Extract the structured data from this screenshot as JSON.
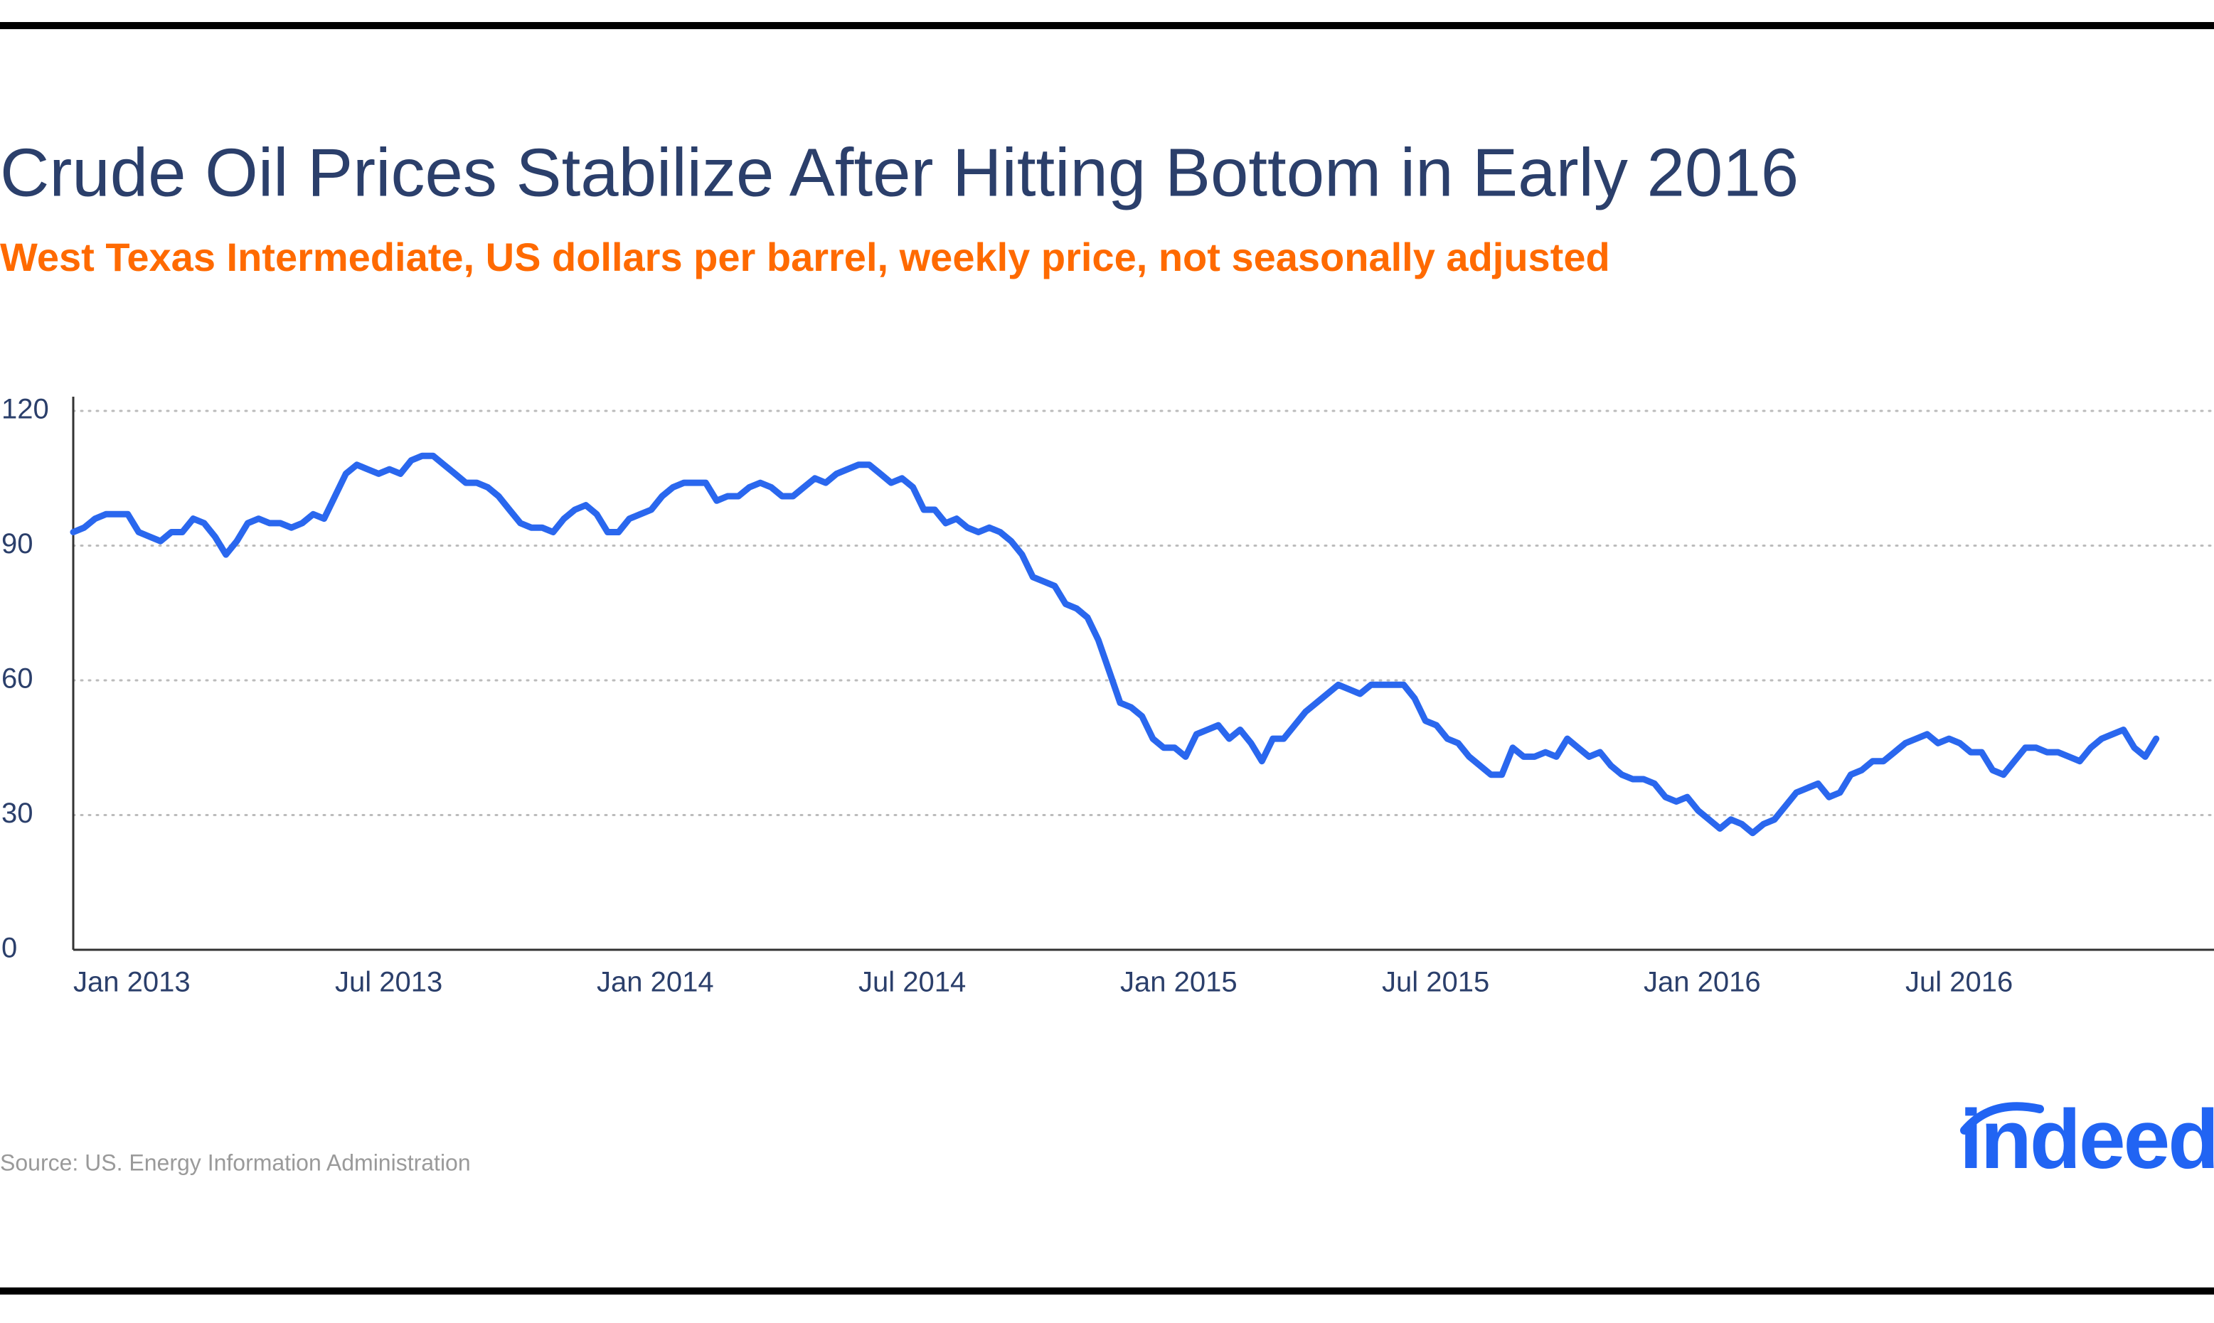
{
  "chart_data": {
    "type": "line",
    "title": "Crude Oil Prices Stabilize After Hitting Bottom in Early 2016",
    "subtitle": "West Texas Intermediate, US dollars per barrel, weekly price, not seasonally adjusted",
    "source": "Source: US. Energy Information Administration",
    "logo": "indeed",
    "color": "#2a67ee",
    "grid": true,
    "ylim": [
      0,
      120
    ],
    "yticks": [
      0,
      30,
      60,
      90,
      120
    ],
    "xlim": [
      "2013-01",
      "2016-12"
    ],
    "xticks": [
      {
        "value": "2013-01",
        "label": "Jan 2013"
      },
      {
        "value": "2013-07",
        "label": "Jul 2013"
      },
      {
        "value": "2014-01",
        "label": "Jan 2014"
      },
      {
        "value": "2014-07",
        "label": "Jul 2014"
      },
      {
        "value": "2015-01",
        "label": "Jan 2015"
      },
      {
        "value": "2015-07",
        "label": "Jul 2015"
      },
      {
        "value": "2016-01",
        "label": "Jan 2016"
      },
      {
        "value": "2016-07",
        "label": "Jul 2016"
      }
    ],
    "x": [
      "2013-01",
      "2013-01",
      "2013-01",
      "2013-01",
      "2013-02",
      "2013-02",
      "2013-02",
      "2013-02",
      "2013-03",
      "2013-03",
      "2013-03",
      "2013-03",
      "2013-04",
      "2013-04",
      "2013-04",
      "2013-04",
      "2013-05",
      "2013-05",
      "2013-05",
      "2013-05",
      "2013-06",
      "2013-06",
      "2013-06",
      "2013-06",
      "2013-07",
      "2013-07",
      "2013-07",
      "2013-07",
      "2013-08",
      "2013-08",
      "2013-08",
      "2013-08",
      "2013-09",
      "2013-09",
      "2013-09",
      "2013-09",
      "2013-10",
      "2013-10",
      "2013-10",
      "2013-10",
      "2013-11",
      "2013-11",
      "2013-11",
      "2013-11",
      "2013-12",
      "2013-12",
      "2013-12",
      "2013-12",
      "2014-01",
      "2014-01",
      "2014-01",
      "2014-01",
      "2014-02",
      "2014-02",
      "2014-02",
      "2014-02",
      "2014-03",
      "2014-03",
      "2014-03",
      "2014-03",
      "2014-04",
      "2014-04",
      "2014-04",
      "2014-04",
      "2014-05",
      "2014-05",
      "2014-05",
      "2014-05",
      "2014-06",
      "2014-06",
      "2014-06",
      "2014-06",
      "2014-07",
      "2014-07",
      "2014-07",
      "2014-07",
      "2014-08",
      "2014-08",
      "2014-08",
      "2014-08",
      "2014-09",
      "2014-09",
      "2014-09",
      "2014-09",
      "2014-10",
      "2014-10",
      "2014-10",
      "2014-10",
      "2014-11",
      "2014-11",
      "2014-11",
      "2014-11",
      "2014-12",
      "2014-12",
      "2014-12",
      "2014-12",
      "2015-01",
      "2015-01",
      "2015-01",
      "2015-01",
      "2015-02",
      "2015-02",
      "2015-02",
      "2015-02",
      "2015-03",
      "2015-03",
      "2015-03",
      "2015-03",
      "2015-04",
      "2015-04",
      "2015-04",
      "2015-04",
      "2015-05",
      "2015-05",
      "2015-05",
      "2015-05",
      "2015-06",
      "2015-06",
      "2015-06",
      "2015-06",
      "2015-07",
      "2015-07",
      "2015-07",
      "2015-07",
      "2015-08",
      "2015-08",
      "2015-08",
      "2015-08",
      "2015-09",
      "2015-09",
      "2015-09",
      "2015-09",
      "2015-10",
      "2015-10",
      "2015-10",
      "2015-10",
      "2015-11",
      "2015-11",
      "2015-11",
      "2015-11",
      "2015-12",
      "2015-12",
      "2015-12",
      "2015-12",
      "2016-01",
      "2016-01",
      "2016-01",
      "2016-01",
      "2016-02",
      "2016-02",
      "2016-02",
      "2016-02",
      "2016-03",
      "2016-03",
      "2016-03",
      "2016-03",
      "2016-04",
      "2016-04",
      "2016-04",
      "2016-04",
      "2016-05",
      "2016-05",
      "2016-05",
      "2016-05",
      "2016-06",
      "2016-06",
      "2016-06",
      "2016-06",
      "2016-07",
      "2016-07",
      "2016-07",
      "2016-07",
      "2016-08",
      "2016-08",
      "2016-08",
      "2016-08",
      "2016-09",
      "2016-09",
      "2016-09",
      "2016-09",
      "2016-10",
      "2016-10",
      "2016-10",
      "2016-10",
      "2016-11",
      "2016-11",
      "2016-11",
      "2016-11",
      "2016-12",
      "2016-12",
      "2016-12",
      "2016-12"
    ],
    "values": [
      93,
      94,
      96,
      97,
      97,
      97,
      93,
      92,
      91,
      93,
      93,
      96,
      95,
      92,
      88,
      91,
      95,
      96,
      95,
      95,
      94,
      95,
      97,
      96,
      101,
      106,
      108,
      107,
      106,
      107,
      106,
      109,
      110,
      110,
      108,
      106,
      104,
      104,
      103,
      101,
      98,
      95,
      94,
      94,
      93,
      96,
      98,
      99,
      97,
      93,
      93,
      96,
      97,
      98,
      101,
      103,
      104,
      104,
      104,
      100,
      101,
      101,
      103,
      104,
      103,
      101,
      101,
      103,
      105,
      104,
      106,
      107,
      108,
      108,
      106,
      104,
      105,
      103,
      98,
      98,
      95,
      96,
      94,
      93,
      94,
      93,
      91,
      88,
      83,
      82,
      81,
      77,
      76,
      74,
      69,
      62,
      55,
      54,
      52,
      47,
      45,
      45,
      43,
      48,
      49,
      50,
      47,
      49,
      46,
      42,
      47,
      47,
      50,
      53,
      55,
      57,
      59,
      58,
      57,
      59,
      59,
      59,
      59,
      56,
      51,
      50,
      47,
      46,
      43,
      41,
      39,
      39,
      45,
      43,
      43,
      44,
      43,
      47,
      45,
      43,
      44,
      41,
      39,
      38,
      38,
      37,
      34,
      33,
      34,
      31,
      29,
      27,
      29,
      28,
      26,
      28,
      29,
      32,
      35,
      36,
      37,
      34,
      35,
      39,
      40,
      42,
      42,
      44,
      46,
      47,
      48,
      46,
      47,
      46,
      44,
      44,
      40,
      39,
      42,
      45,
      45,
      44,
      44,
      43,
      42,
      45,
      47,
      48,
      49,
      45,
      43,
      47
    ]
  }
}
